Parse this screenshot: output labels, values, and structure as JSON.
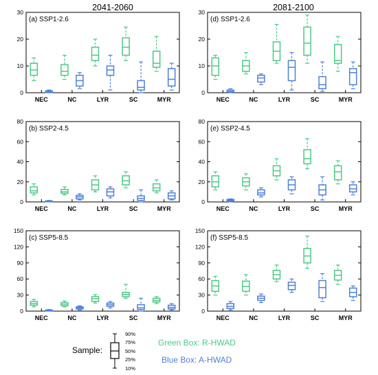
{
  "colors": {
    "green": "#4cc987",
    "blue": "#4f7fd9",
    "axis": "#000000"
  },
  "column_titles": [
    "2041-2060",
    "2081-2100"
  ],
  "legend": {
    "sample_label": "Sample:",
    "percentiles": [
      "90%",
      "75%",
      "50%",
      "25%",
      "10%"
    ],
    "green_text": "Green Box: R-HWAD",
    "blue_text": "Blue Box: A-HWAD"
  },
  "chart_data": [
    {
      "type": "box",
      "label": "(a) SSP1-2.6",
      "categories": [
        "NEC",
        "NC",
        "LYR",
        "SC",
        "MYR"
      ],
      "ylim": [
        0,
        30
      ],
      "yticks": [
        0,
        10,
        20,
        30
      ],
      "series": [
        {
          "name": "R-HWAD",
          "color": "green",
          "boxes": [
            [
              4.5,
              6.5,
              8.5,
              11,
              13
            ],
            [
              5,
              6.5,
              8,
              10.5,
              14
            ],
            [
              10,
              12,
              14,
              17,
              20
            ],
            [
              12,
              14,
              17,
              20.5,
              24.5
            ],
            [
              8,
              9.5,
              11,
              15.5,
              21
            ]
          ]
        },
        {
          "name": "A-HWAD",
          "color": "blue",
          "boxes": [
            [
              0,
              0.1,
              0.3,
              0.7,
              1
            ],
            [
              1.5,
              2.5,
              4.5,
              6.5,
              7.5
            ],
            [
              1,
              6.5,
              8.5,
              10,
              14
            ],
            [
              0,
              1,
              2,
              4.5,
              11.5
            ],
            [
              1,
              2.5,
              5,
              9,
              11
            ]
          ]
        }
      ]
    },
    {
      "type": "box",
      "label": "(d) SSP1-2.6",
      "categories": [
        "NEC",
        "NC",
        "LYR",
        "SC",
        "MYR"
      ],
      "ylim": [
        0,
        30
      ],
      "yticks": [
        0,
        10,
        20,
        30
      ],
      "series": [
        {
          "name": "R-HWAD",
          "color": "green",
          "boxes": [
            [
              5,
              6.5,
              10,
              13,
              14
            ],
            [
              7,
              8,
              10,
              12,
              15
            ],
            [
              11,
              12,
              15.5,
              19,
              25.5
            ],
            [
              11,
              14,
              18.5,
              24.5,
              29
            ],
            [
              8,
              11,
              12,
              18,
              21
            ]
          ]
        },
        {
          "name": "A-HWAD",
          "color": "blue",
          "boxes": [
            [
              0,
              0.2,
              0.5,
              1,
              1.5
            ],
            [
              3,
              4,
              5.5,
              6.5,
              7
            ],
            [
              1,
              4.5,
              9.5,
              12,
              15
            ],
            [
              0.5,
              1.5,
              3,
              6,
              11.5
            ],
            [
              1.5,
              3,
              7.5,
              9,
              11.5
            ]
          ]
        }
      ]
    },
    {
      "type": "box",
      "label": "(b) SSP2-4.5",
      "categories": [
        "NEC",
        "NC",
        "LYR",
        "SC",
        "MYR"
      ],
      "ylim": [
        0,
        80
      ],
      "yticks": [
        0,
        20,
        40,
        60,
        80
      ],
      "series": [
        {
          "name": "R-HWAD",
          "color": "green",
          "boxes": [
            [
              7,
              9,
              11,
              15,
              18
            ],
            [
              7,
              8.5,
              10,
              12.5,
              15
            ],
            [
              10,
              12,
              17,
              22,
              26
            ],
            [
              14,
              17,
              21,
              26,
              30
            ],
            [
              9,
              11,
              14,
              18,
              22
            ]
          ]
        },
        {
          "name": "A-HWAD",
          "color": "blue",
          "boxes": [
            [
              0,
              0.2,
              0.5,
              1,
              1.5
            ],
            [
              2,
              3,
              5,
              6.5,
              8
            ],
            [
              4,
              6,
              10,
              13,
              15
            ],
            [
              0,
              1.5,
              3.5,
              6,
              12
            ],
            [
              2,
              3,
              6,
              9,
              11
            ]
          ]
        }
      ]
    },
    {
      "type": "box",
      "label": "(e) SSP2-4.5",
      "categories": [
        "NEC",
        "NC",
        "LYR",
        "SC",
        "MYR"
      ],
      "ylim": [
        0,
        80
      ],
      "yticks": [
        0,
        20,
        40,
        60,
        80
      ],
      "series": [
        {
          "name": "R-HWAD",
          "color": "green",
          "boxes": [
            [
              12,
              15,
              20,
              26,
              30
            ],
            [
              12,
              16,
              20,
              24,
              28
            ],
            [
              22,
              26,
              31,
              36,
              43
            ],
            [
              33,
              38,
              43,
              52,
              63
            ],
            [
              18,
              22,
              30,
              36,
              41
            ]
          ]
        },
        {
          "name": "A-HWAD",
          "color": "blue",
          "boxes": [
            [
              0,
              0.5,
              1.5,
              2.5,
              3
            ],
            [
              5,
              7,
              9,
              12,
              14
            ],
            [
              8,
              12,
              17,
              22,
              25
            ],
            [
              2,
              7,
              12,
              17,
              25
            ],
            [
              7,
              10,
              13,
              17,
              20
            ]
          ]
        }
      ]
    },
    {
      "type": "box",
      "label": "(c) SSP5-8.5",
      "categories": [
        "NEC",
        "NC",
        "LYR",
        "SC",
        "MYR"
      ],
      "ylim": [
        0,
        150
      ],
      "yticks": [
        0,
        30,
        60,
        90,
        120,
        150
      ],
      "series": [
        {
          "name": "R-HWAD",
          "color": "green",
          "boxes": [
            [
              8,
              11,
              14,
              18,
              22
            ],
            [
              8,
              10,
              13,
              16,
              19
            ],
            [
              15,
              18,
              23,
              27,
              31
            ],
            [
              24,
              27,
              31,
              35,
              50
            ],
            [
              14,
              17,
              20,
              24,
              27
            ]
          ]
        },
        {
          "name": "A-HWAD",
          "color": "blue",
          "boxes": [
            [
              0,
              0.5,
              1,
              2,
              3
            ],
            [
              2,
              4,
              6,
              8,
              10
            ],
            [
              6,
              9,
              12,
              15,
              18
            ],
            [
              0,
              3,
              6,
              12,
              24
            ],
            [
              2,
              4,
              7,
              11,
              14
            ]
          ]
        }
      ]
    },
    {
      "type": "box",
      "label": "(f) SSP5-8.5",
      "categories": [
        "NEC",
        "NC",
        "LYR",
        "SC",
        "MYR"
      ],
      "ylim": [
        0,
        150
      ],
      "yticks": [
        0,
        30,
        60,
        90,
        120,
        150
      ],
      "series": [
        {
          "name": "R-HWAD",
          "color": "green",
          "boxes": [
            [
              30,
              37,
              47,
              57,
              65
            ],
            [
              30,
              37,
              46,
              56,
              68
            ],
            [
              55,
              60,
              68,
              76,
              86
            ],
            [
              80,
              90,
              103,
              117,
              140
            ],
            [
              50,
              58,
              67,
              76,
              86
            ]
          ]
        },
        {
          "name": "A-HWAD",
          "color": "blue",
          "boxes": [
            [
              2,
              5,
              9,
              14,
              18
            ],
            [
              16,
              20,
              24,
              28,
              32
            ],
            [
              35,
              40,
              48,
              54,
              60
            ],
            [
              18,
              25,
              44,
              57,
              70
            ],
            [
              20,
              27,
              35,
              43,
              47
            ]
          ]
        }
      ]
    }
  ]
}
